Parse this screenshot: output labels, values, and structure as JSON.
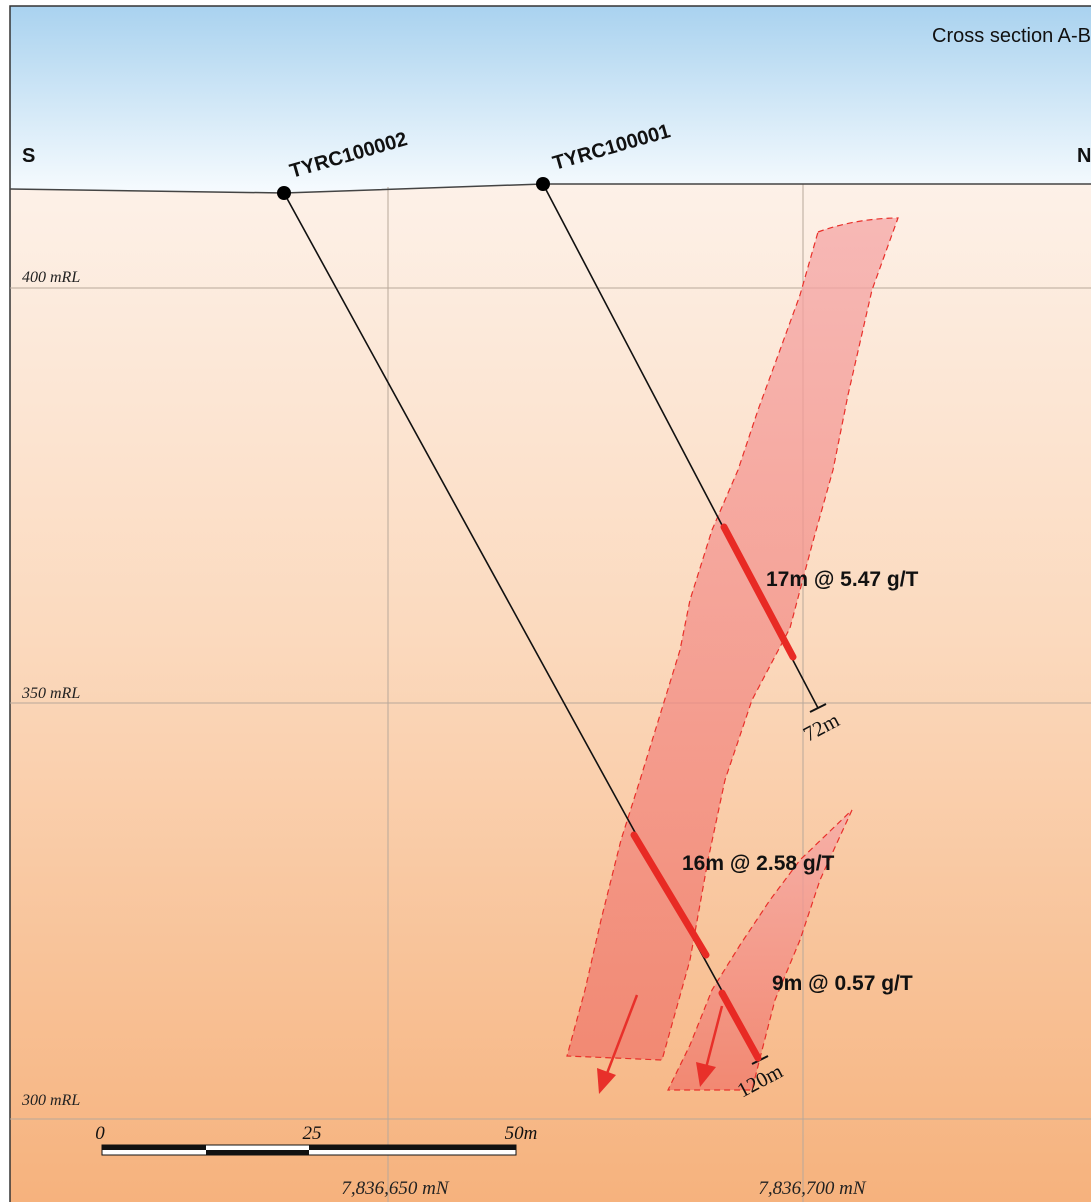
{
  "title": "Cross section A-B",
  "orientation": {
    "left": "S",
    "right": "N"
  },
  "rl_labels": [
    "400 mRL",
    "350 mRL",
    "300 mRL"
  ],
  "northing_labels": [
    "7,836,650 mN",
    "7,836,700 mN"
  ],
  "scale_bar": {
    "labels": [
      "0",
      "25",
      "50m"
    ]
  },
  "holes": [
    {
      "id": "TYRC100002",
      "end_depth_label": "120m"
    },
    {
      "id": "TYRC100001",
      "end_depth_label": "72m"
    }
  ],
  "intercepts": [
    {
      "hole": "TYRC100001",
      "label": "17m @ 5.47 g/T"
    },
    {
      "hole": "TYRC100002",
      "label": "16m @ 2.58 g/T"
    },
    {
      "hole": "TYRC100002",
      "label": "9m @ 0.57 g/T"
    }
  ],
  "colors": {
    "sky_top": "#a9d2ef",
    "ground_top": "#fdeee2",
    "ground_bottom": "#f6b480",
    "zone_fill": "#f26d6d",
    "zone_outline": "#e8302a",
    "intercept": "#e82a24",
    "arrow": "#e8302a"
  }
}
